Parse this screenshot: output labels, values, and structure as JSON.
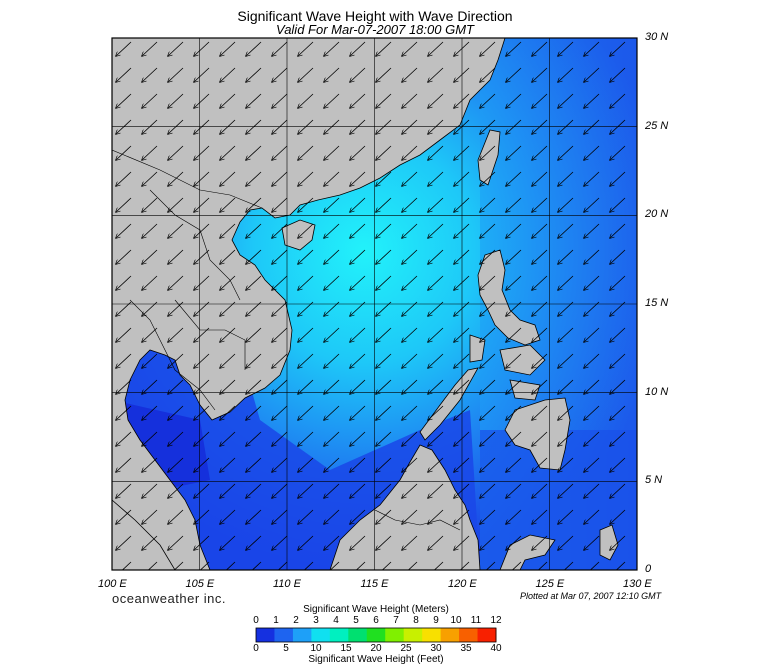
{
  "title": "Significant Wave Height with Wave Direction",
  "subtitle": "Valid For Mar-07-2007 18:00 GMT",
  "brand": "oceanweather inc.",
  "plotted": "Plotted at Mar 07, 2007 12:10 GMT",
  "lat_labels": [
    "30 N",
    "25 N",
    "20 N",
    "15 N",
    "10 N",
    "5 N",
    "0"
  ],
  "lon_labels": [
    "100 E",
    "105 E",
    "110 E",
    "115 E",
    "120 E",
    "125 E",
    "130 E"
  ],
  "lon_range": [
    100,
    130
  ],
  "lat_range": [
    0,
    30
  ],
  "colorbar": {
    "title_meters": "Significant Wave Height (Meters)",
    "title_feet": "Significant Wave Height (Feet)",
    "meter_ticks": [
      "0",
      "1",
      "2",
      "3",
      "4",
      "5",
      "6",
      "7",
      "8",
      "9",
      "10",
      "11",
      "12"
    ],
    "feet_ticks": [
      "0",
      "5",
      "10",
      "15",
      "20",
      "25",
      "30",
      "35",
      "40"
    ],
    "colors": [
      "#1530e0",
      "#1e64f0",
      "#1ea0f8",
      "#10e0f0",
      "#00f0c0",
      "#00e070",
      "#20e020",
      "#80f000",
      "#c8f000",
      "#f8e000",
      "#f8a000",
      "#f86000",
      "#f82000"
    ]
  },
  "colors": {
    "land": "#c0c0c0",
    "sea_deep": "#1a3ee8",
    "sea_mid": "#1e7ef4",
    "sea_light": "#20e8f8",
    "coast": "#000000"
  }
}
